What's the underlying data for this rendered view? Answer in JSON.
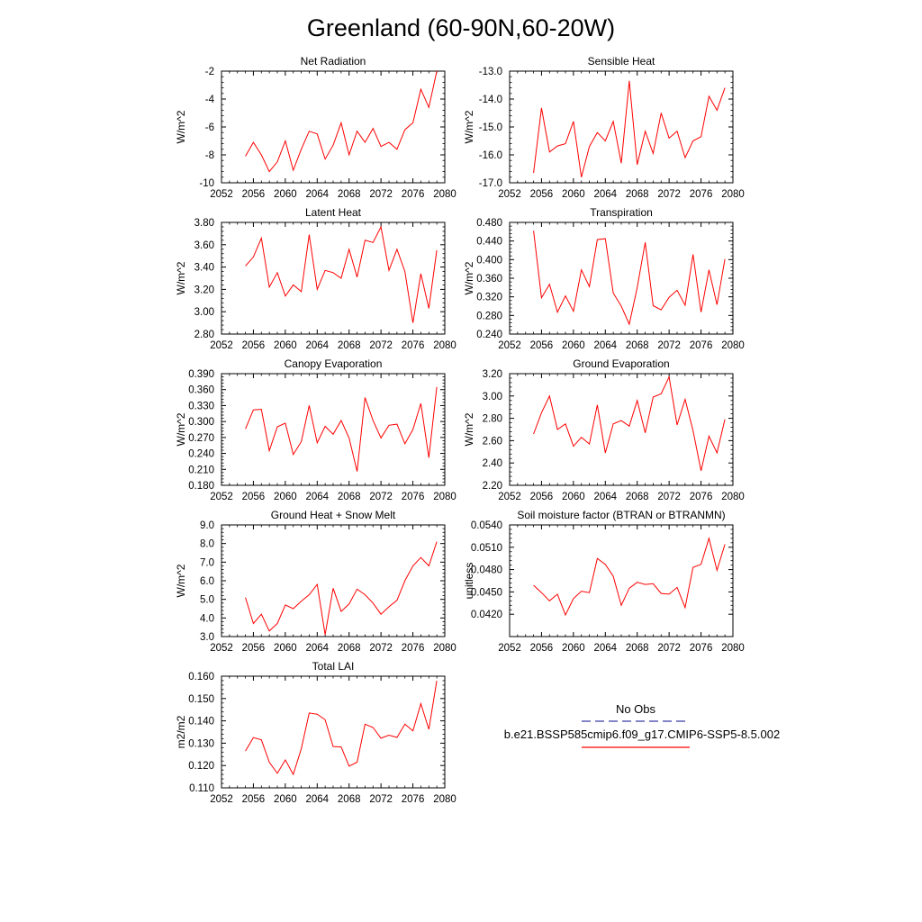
{
  "figure": {
    "title": "Greenland (60-90N,60-20W)"
  },
  "chart_data": [
    {
      "type": "line",
      "title": "Net Radiation",
      "ylabel": "W/m^2",
      "xlim": [
        2052,
        2080
      ],
      "ylim": [
        -10,
        -2
      ],
      "xticks": [
        2052,
        2056,
        2060,
        2064,
        2068,
        2072,
        2076,
        2080
      ],
      "xtick_labels": [
        "2052",
        "2056",
        "2060",
        "2064",
        "2068",
        "2072",
        "2076",
        "2080"
      ],
      "yticks": [
        -10,
        -8,
        -6,
        -4,
        -2
      ],
      "ytick_labels": [
        "-10",
        "-8",
        "-6",
        "-4",
        "-2"
      ],
      "x": [
        2055,
        2056,
        2057,
        2058,
        2059,
        2060,
        2061,
        2062,
        2063,
        2064,
        2065,
        2066,
        2067,
        2068,
        2069,
        2070,
        2071,
        2072,
        2073,
        2074,
        2075,
        2076,
        2077,
        2078,
        2079
      ],
      "series": [
        {
          "color": "#ff0000",
          "values": [
            -8.1,
            -7.1,
            -8.0,
            -9.2,
            -8.5,
            -7.0,
            -9.1,
            -7.6,
            -6.3,
            -6.5,
            -8.3,
            -7.3,
            -5.7,
            -8.0,
            -6.3,
            -7.1,
            -6.1,
            -7.4,
            -7.1,
            -7.6,
            -6.2,
            -5.7,
            -3.3,
            -4.6,
            -2.0
          ]
        }
      ]
    },
    {
      "type": "line",
      "title": "Sensible Heat",
      "ylabel": "W/m^2",
      "xlim": [
        2052,
        2080
      ],
      "ylim": [
        -17.0,
        -13.0
      ],
      "xticks": [
        2052,
        2056,
        2060,
        2064,
        2068,
        2072,
        2076,
        2080
      ],
      "xtick_labels": [
        "2052",
        "2056",
        "2060",
        "2064",
        "2068",
        "2072",
        "2076",
        "2080"
      ],
      "yticks": [
        -17.0,
        -16.0,
        -15.0,
        -14.0,
        -13.0
      ],
      "ytick_labels": [
        "-17.0",
        "-16.0",
        "-15.0",
        "-14.0",
        "-13.0"
      ],
      "x": [
        2055,
        2056,
        2057,
        2058,
        2059,
        2060,
        2061,
        2062,
        2063,
        2064,
        2065,
        2066,
        2067,
        2068,
        2069,
        2070,
        2071,
        2072,
        2073,
        2074,
        2075,
        2076,
        2077,
        2078,
        2079
      ],
      "series": [
        {
          "color": "#ff0000",
          "values": [
            -16.65,
            -14.32,
            -15.9,
            -15.68,
            -15.6,
            -14.8,
            -16.8,
            -15.7,
            -15.2,
            -15.5,
            -14.8,
            -16.3,
            -13.35,
            -16.35,
            -15.15,
            -15.95,
            -14.5,
            -15.4,
            -15.15,
            -16.1,
            -15.5,
            -15.35,
            -13.9,
            -14.4,
            -13.6
          ]
        }
      ]
    },
    {
      "type": "line",
      "title": "Latent Heat",
      "ylabel": "W/m^2",
      "xlim": [
        2052,
        2080
      ],
      "ylim": [
        2.8,
        3.8
      ],
      "xticks": [
        2052,
        2056,
        2060,
        2064,
        2068,
        2072,
        2076,
        2080
      ],
      "xtick_labels": [
        "2052",
        "2056",
        "2060",
        "2064",
        "2068",
        "2072",
        "2076",
        "2080"
      ],
      "yticks": [
        2.8,
        3.0,
        3.2,
        3.4,
        3.6,
        3.8
      ],
      "ytick_labels": [
        "2.80",
        "3.00",
        "3.20",
        "3.40",
        "3.60",
        "3.80"
      ],
      "x": [
        2055,
        2056,
        2057,
        2058,
        2059,
        2060,
        2061,
        2062,
        2063,
        2064,
        2065,
        2066,
        2067,
        2068,
        2069,
        2070,
        2071,
        2072,
        2073,
        2074,
        2075,
        2076,
        2077,
        2078,
        2079
      ],
      "series": [
        {
          "color": "#ff0000",
          "values": [
            3.41,
            3.49,
            3.66,
            3.22,
            3.35,
            3.14,
            3.24,
            3.18,
            3.69,
            3.2,
            3.37,
            3.35,
            3.3,
            3.56,
            3.31,
            3.64,
            3.62,
            3.76,
            3.37,
            3.56,
            3.36,
            2.9,
            3.34,
            3.03,
            3.55
          ]
        }
      ]
    },
    {
      "type": "line",
      "title": "Transpiration",
      "ylabel": "W/m^2",
      "xlim": [
        2052,
        2080
      ],
      "ylim": [
        0.24,
        0.48
      ],
      "xticks": [
        2052,
        2056,
        2060,
        2064,
        2068,
        2072,
        2076,
        2080
      ],
      "xtick_labels": [
        "2052",
        "2056",
        "2060",
        "2064",
        "2068",
        "2072",
        "2076",
        "2080"
      ],
      "yticks": [
        0.24,
        0.28,
        0.32,
        0.36,
        0.4,
        0.44,
        0.48
      ],
      "ytick_labels": [
        "0.240",
        "0.280",
        "0.320",
        "0.360",
        "0.400",
        "0.440",
        "0.480"
      ],
      "x": [
        2055,
        2056,
        2057,
        2058,
        2059,
        2060,
        2061,
        2062,
        2063,
        2064,
        2065,
        2066,
        2067,
        2068,
        2069,
        2070,
        2071,
        2072,
        2073,
        2074,
        2075,
        2076,
        2077,
        2078,
        2079
      ],
      "series": [
        {
          "color": "#ff0000",
          "values": [
            0.462,
            0.318,
            0.347,
            0.287,
            0.322,
            0.289,
            0.378,
            0.342,
            0.443,
            0.445,
            0.328,
            0.3,
            0.261,
            0.34,
            0.437,
            0.301,
            0.292,
            0.319,
            0.334,
            0.302,
            0.411,
            0.287,
            0.378,
            0.303,
            0.401
          ]
        }
      ]
    },
    {
      "type": "line",
      "title": "Canopy Evaporation",
      "ylabel": "W/m^2",
      "xlim": [
        2052,
        2080
      ],
      "ylim": [
        0.18,
        0.39
      ],
      "xticks": [
        2052,
        2056,
        2060,
        2064,
        2068,
        2072,
        2076,
        2080
      ],
      "xtick_labels": [
        "2052",
        "2056",
        "2060",
        "2064",
        "2068",
        "2072",
        "2076",
        "2080"
      ],
      "yticks": [
        0.18,
        0.21,
        0.24,
        0.27,
        0.3,
        0.33,
        0.36,
        0.39
      ],
      "ytick_labels": [
        "0.180",
        "0.210",
        "0.240",
        "0.270",
        "0.300",
        "0.330",
        "0.360",
        "0.390"
      ],
      "x": [
        2055,
        2056,
        2057,
        2058,
        2059,
        2060,
        2061,
        2062,
        2063,
        2064,
        2065,
        2066,
        2067,
        2068,
        2069,
        2070,
        2071,
        2072,
        2073,
        2074,
        2075,
        2076,
        2077,
        2078,
        2079
      ],
      "series": [
        {
          "color": "#ff0000",
          "values": [
            0.286,
            0.322,
            0.323,
            0.245,
            0.29,
            0.297,
            0.238,
            0.262,
            0.33,
            0.26,
            0.291,
            0.276,
            0.302,
            0.269,
            0.206,
            0.345,
            0.302,
            0.269,
            0.293,
            0.295,
            0.258,
            0.285,
            0.334,
            0.232,
            0.365
          ]
        }
      ]
    },
    {
      "type": "line",
      "title": "Ground Evaporation",
      "ylabel": "W/m^2",
      "xlim": [
        2052,
        2080
      ],
      "ylim": [
        2.2,
        3.2
      ],
      "xticks": [
        2052,
        2056,
        2060,
        2064,
        2068,
        2072,
        2076,
        2080
      ],
      "xtick_labels": [
        "2052",
        "2056",
        "2060",
        "2064",
        "2068",
        "2072",
        "2076",
        "2080"
      ],
      "yticks": [
        2.2,
        2.4,
        2.6,
        2.8,
        3.0,
        3.2
      ],
      "ytick_labels": [
        "2.20",
        "2.40",
        "2.60",
        "2.80",
        "3.00",
        "3.20"
      ],
      "x": [
        2055,
        2056,
        2057,
        2058,
        2059,
        2060,
        2061,
        2062,
        2063,
        2064,
        2065,
        2066,
        2067,
        2068,
        2069,
        2070,
        2071,
        2072,
        2073,
        2074,
        2075,
        2076,
        2077,
        2078,
        2079
      ],
      "series": [
        {
          "color": "#ff0000",
          "values": [
            2.66,
            2.85,
            3.0,
            2.7,
            2.75,
            2.55,
            2.63,
            2.57,
            2.92,
            2.49,
            2.75,
            2.78,
            2.73,
            2.96,
            2.67,
            2.99,
            3.02,
            3.17,
            2.74,
            2.97,
            2.69,
            2.33,
            2.64,
            2.49,
            2.79
          ]
        }
      ]
    },
    {
      "type": "line",
      "title": "Ground Heat + Snow Melt",
      "ylabel": "W/m^2",
      "xlim": [
        2052,
        2080
      ],
      "ylim": [
        3.0,
        9.0
      ],
      "xticks": [
        2052,
        2056,
        2060,
        2064,
        2068,
        2072,
        2076,
        2080
      ],
      "xtick_labels": [
        "2052",
        "2056",
        "2060",
        "2064",
        "2068",
        "2072",
        "2076",
        "2080"
      ],
      "yticks": [
        3,
        4,
        5,
        6,
        7,
        8,
        9
      ],
      "ytick_labels": [
        "3.0",
        "4.0",
        "5.0",
        "6.0",
        "7.0",
        "8.0",
        "9.0"
      ],
      "x": [
        2055,
        2056,
        2057,
        2058,
        2059,
        2060,
        2061,
        2062,
        2063,
        2064,
        2065,
        2066,
        2067,
        2068,
        2069,
        2070,
        2071,
        2072,
        2073,
        2074,
        2075,
        2076,
        2077,
        2078,
        2079
      ],
      "series": [
        {
          "color": "#ff0000",
          "values": [
            5.1,
            3.7,
            4.2,
            3.3,
            3.7,
            4.7,
            4.5,
            4.9,
            5.25,
            5.8,
            3.1,
            5.6,
            4.35,
            4.75,
            5.55,
            5.25,
            4.8,
            4.2,
            4.6,
            4.95,
            6.0,
            6.8,
            7.25,
            6.8,
            8.1
          ]
        }
      ]
    },
    {
      "type": "line",
      "title": "Soil moisture factor (BTRAN or BTRANMN)",
      "ylabel": "unitless",
      "xlim": [
        2052,
        2080
      ],
      "ylim": [
        0.039,
        0.054
      ],
      "xticks": [
        2052,
        2056,
        2060,
        2064,
        2068,
        2072,
        2076,
        2080
      ],
      "xtick_labels": [
        "2052",
        "2056",
        "2060",
        "2064",
        "2068",
        "2072",
        "2076",
        "2080"
      ],
      "yticks": [
        0.042,
        0.045,
        0.048,
        0.051,
        0.054
      ],
      "ytick_labels": [
        "0.0420",
        "0.0450",
        "0.0480",
        "0.0510",
        "0.0540"
      ],
      "x": [
        2055,
        2056,
        2057,
        2058,
        2059,
        2060,
        2061,
        2062,
        2063,
        2064,
        2065,
        2066,
        2067,
        2068,
        2069,
        2070,
        2071,
        2072,
        2073,
        2074,
        2075,
        2076,
        2077,
        2078,
        2079
      ],
      "series": [
        {
          "color": "#ff0000",
          "values": [
            0.0459,
            0.0449,
            0.0438,
            0.0447,
            0.0419,
            0.0441,
            0.0451,
            0.0449,
            0.0495,
            0.0487,
            0.0471,
            0.0432,
            0.0455,
            0.0463,
            0.046,
            0.0461,
            0.0448,
            0.0447,
            0.0456,
            0.0429,
            0.0483,
            0.0487,
            0.0522,
            0.0479,
            0.0514
          ]
        }
      ]
    },
    {
      "type": "line",
      "title": "Total LAI",
      "ylabel": "m2/m2",
      "xlim": [
        2052,
        2080
      ],
      "ylim": [
        0.11,
        0.16
      ],
      "xticks": [
        2052,
        2056,
        2060,
        2064,
        2068,
        2072,
        2076,
        2080
      ],
      "xtick_labels": [
        "2052",
        "2056",
        "2060",
        "2064",
        "2068",
        "2072",
        "2076",
        "2080"
      ],
      "yticks": [
        0.11,
        0.12,
        0.13,
        0.14,
        0.15,
        0.16
      ],
      "ytick_labels": [
        "0.110",
        "0.120",
        "0.130",
        "0.140",
        "0.150",
        "0.160"
      ],
      "x": [
        2055,
        2056,
        2057,
        2058,
        2059,
        2060,
        2061,
        2062,
        2063,
        2064,
        2065,
        2066,
        2067,
        2068,
        2069,
        2070,
        2071,
        2072,
        2073,
        2074,
        2075,
        2076,
        2077,
        2078,
        2079
      ],
      "series": [
        {
          "color": "#ff0000",
          "values": [
            0.1265,
            0.1325,
            0.1315,
            0.1215,
            0.1165,
            0.1225,
            0.116,
            0.1275,
            0.1435,
            0.143,
            0.1405,
            0.1285,
            0.1283,
            0.1197,
            0.1215,
            0.1385,
            0.137,
            0.1322,
            0.1336,
            0.1326,
            0.1385,
            0.1355,
            0.1477,
            0.1362,
            0.158
          ]
        }
      ]
    }
  ],
  "legend": {
    "entries": [
      {
        "label": "No Obs",
        "color": "#3a3aa8",
        "style": "dashed"
      },
      {
        "label": "b.e21.BSSP585cmip6.f09_g17.CMIP6-SSP5-8.5.002",
        "color": "#ff0000",
        "style": "solid"
      }
    ]
  }
}
